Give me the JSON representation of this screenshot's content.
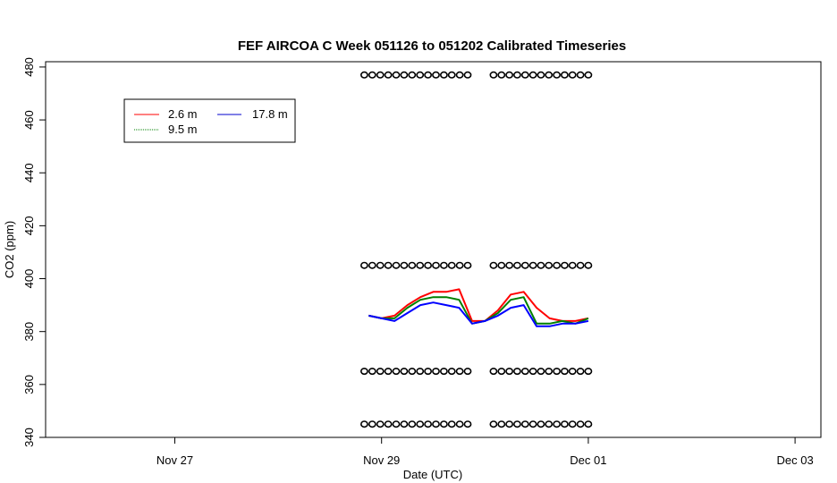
{
  "chart_data": {
    "type": "line",
    "title": "FEF AIRCOA C  Week 051126 to 051202  Calibrated Timeseries",
    "xlabel": "Date (UTC)",
    "ylabel": "CO2 (ppm)",
    "x_unit": "date (UTC, 2005)",
    "xlim": [
      "2005-11-25 18:00",
      "2005-12-03 06:00"
    ],
    "ylim": [
      340,
      482
    ],
    "x_ticks": [
      {
        "label": "Nov 27",
        "x": "2005-11-27 00:00"
      },
      {
        "label": "Nov 29",
        "x": "2005-11-29 00:00"
      },
      {
        "label": "Dec 01",
        "x": "2005-12-01 00:00"
      },
      {
        "label": "Dec 03",
        "x": "2005-12-03 00:00"
      }
    ],
    "y_ticks": [
      340,
      360,
      380,
      400,
      420,
      440,
      460,
      480
    ],
    "grid": false,
    "legend_position": "top-left",
    "series": [
      {
        "name": "2.6 m",
        "color": "#ff0000",
        "x": [
          "2005-11-28 21:00",
          "2005-11-29 00:00",
          "2005-11-29 03:00",
          "2005-11-29 06:00",
          "2005-11-29 09:00",
          "2005-11-29 12:00",
          "2005-11-29 15:00",
          "2005-11-29 18:00",
          "2005-11-29 21:00",
          "2005-11-30 00:00",
          "2005-11-30 03:00",
          "2005-11-30 06:00",
          "2005-11-30 09:00",
          "2005-11-30 12:00",
          "2005-11-30 15:00",
          "2005-11-30 18:00",
          "2005-11-30 21:00",
          "2005-12-01 00:00"
        ],
        "y": [
          386,
          385,
          386,
          390,
          393,
          395,
          395,
          396,
          384,
          384,
          388,
          394,
          395,
          389,
          385,
          384,
          384,
          385
        ]
      },
      {
        "name": "9.5 m",
        "color": "#008000",
        "x": [
          "2005-11-28 21:00",
          "2005-11-29 00:00",
          "2005-11-29 03:00",
          "2005-11-29 06:00",
          "2005-11-29 09:00",
          "2005-11-29 12:00",
          "2005-11-29 15:00",
          "2005-11-29 18:00",
          "2005-11-29 21:00",
          "2005-11-30 00:00",
          "2005-11-30 03:00",
          "2005-11-30 06:00",
          "2005-11-30 09:00",
          "2005-11-30 12:00",
          "2005-11-30 15:00",
          "2005-11-30 18:00",
          "2005-11-30 21:00",
          "2005-12-01 00:00"
        ],
        "y": [
          386,
          385,
          385,
          389,
          392,
          393,
          393,
          392,
          383,
          384,
          387,
          392,
          393,
          383,
          383,
          384,
          383,
          385
        ]
      },
      {
        "name": "17.8 m",
        "color": "#0000ff",
        "x": [
          "2005-11-28 21:00",
          "2005-11-29 00:00",
          "2005-11-29 03:00",
          "2005-11-29 06:00",
          "2005-11-29 09:00",
          "2005-11-29 12:00",
          "2005-11-29 15:00",
          "2005-11-29 18:00",
          "2005-11-29 21:00",
          "2005-11-30 00:00",
          "2005-11-30 03:00",
          "2005-11-30 06:00",
          "2005-11-30 09:00",
          "2005-11-30 12:00",
          "2005-11-30 15:00",
          "2005-11-30 18:00",
          "2005-11-30 21:00",
          "2005-12-01 00:00"
        ],
        "y": [
          386,
          385,
          384,
          387,
          390,
          391,
          390,
          389,
          383,
          384,
          386,
          389,
          390,
          382,
          382,
          383,
          383,
          384
        ]
      }
    ],
    "calibration_points": {
      "marker": "open-circle",
      "levels": [
        477,
        405,
        365,
        345
      ],
      "segments": [
        {
          "start": "2005-11-28 20:00",
          "end": "2005-11-29 20:00"
        },
        {
          "start": "2005-11-30 02:00",
          "end": "2005-12-01 00:00"
        }
      ]
    }
  }
}
